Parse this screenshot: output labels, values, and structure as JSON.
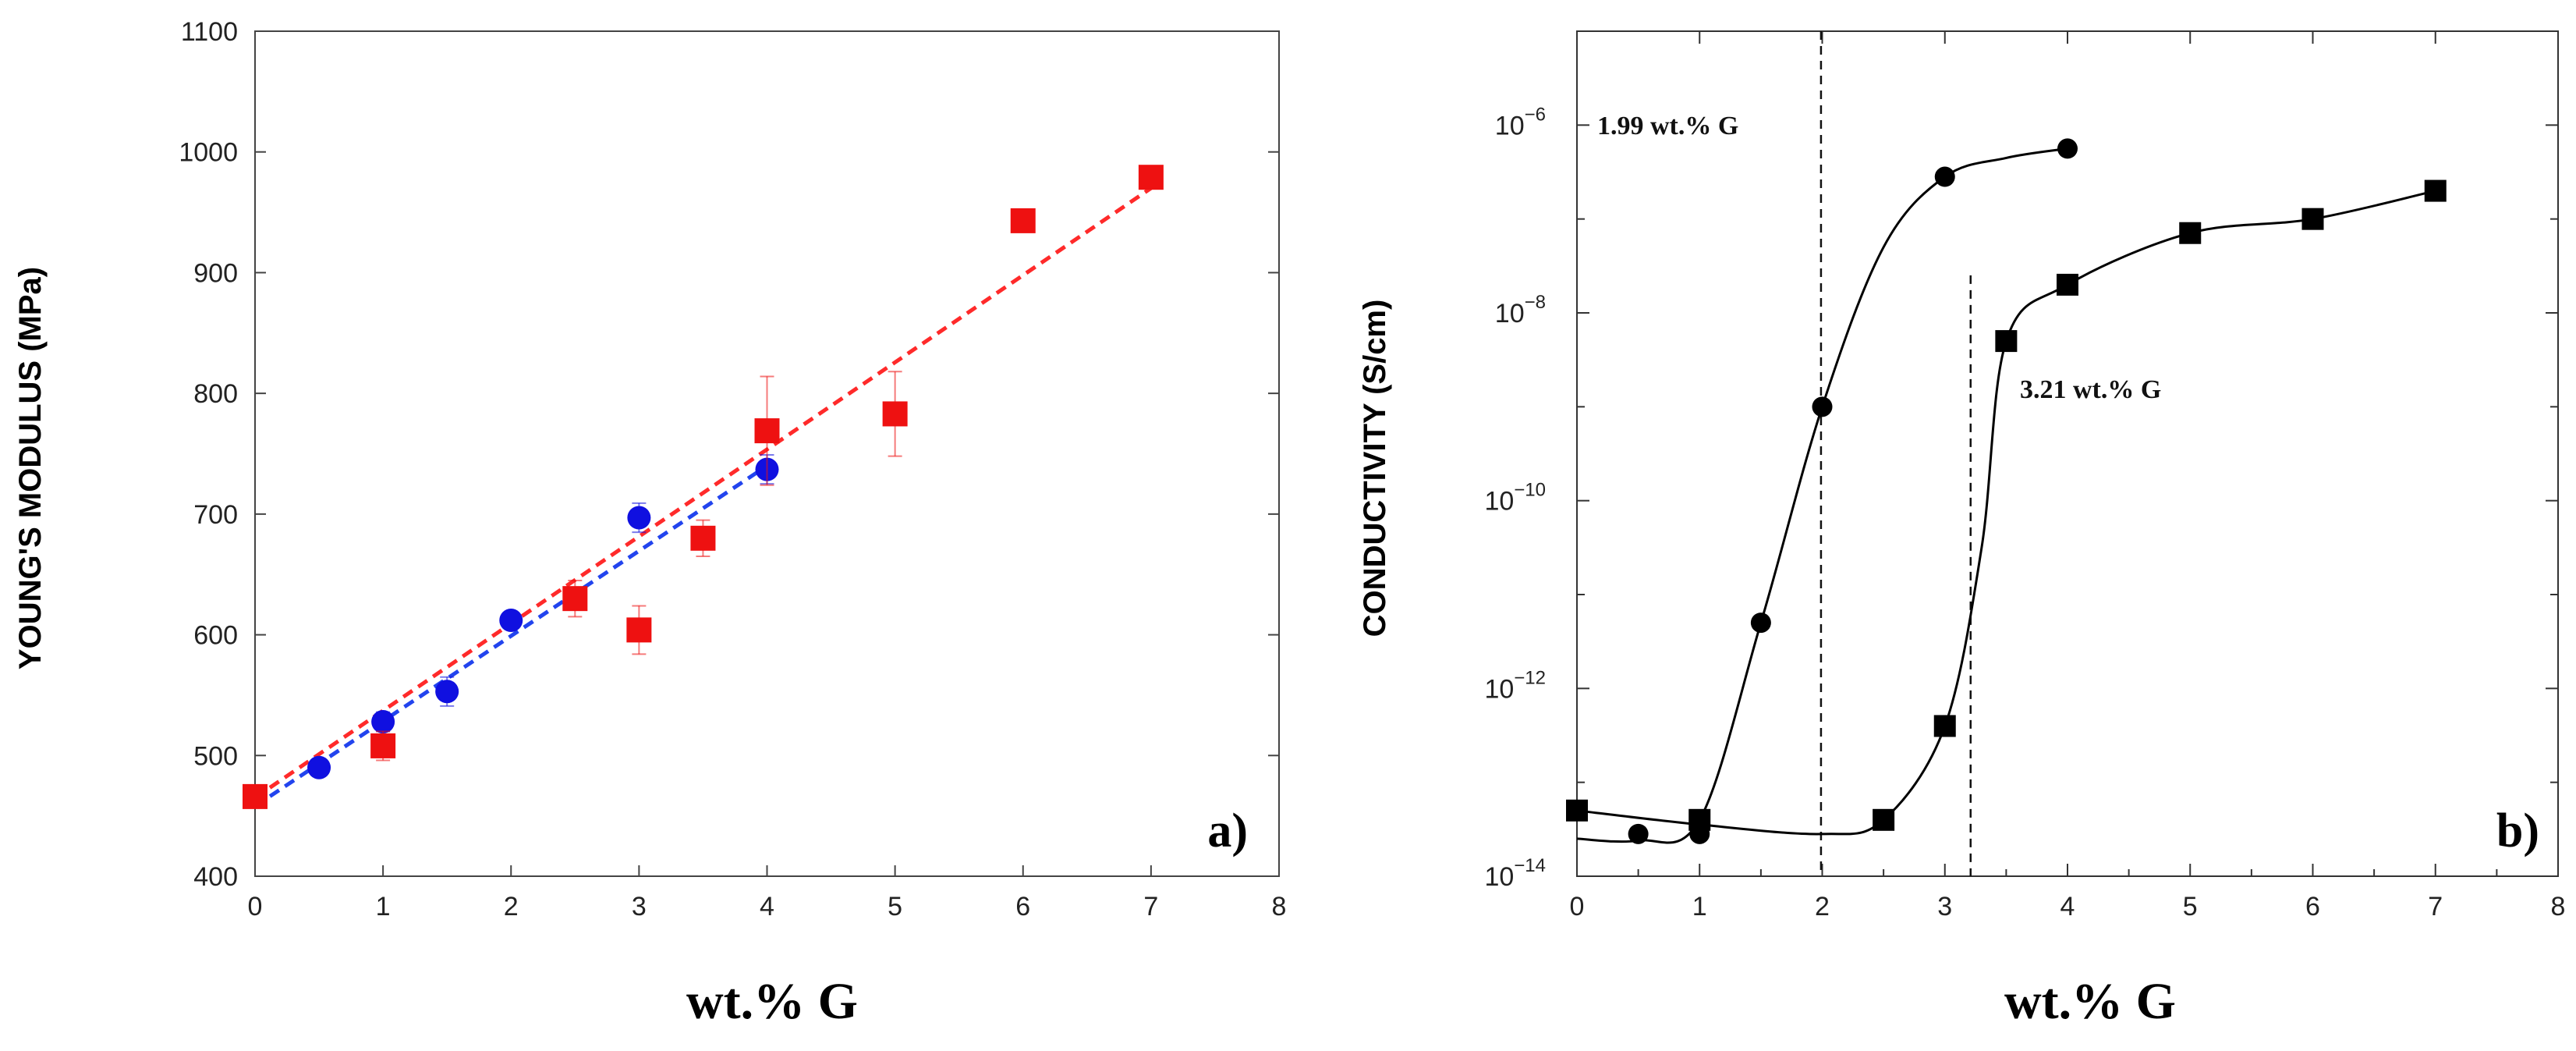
{
  "chart_data": [
    {
      "type": "scatter",
      "panel_label": "a)",
      "xlabel": "wt.% G",
      "ylabel": "YOUNG'S MODULUS (MPa)",
      "xlim": [
        0,
        8
      ],
      "ylim": [
        400,
        1100
      ],
      "x_ticks": [
        "0",
        "1",
        "2",
        "3",
        "4",
        "5",
        "6",
        "7",
        "8"
      ],
      "y_ticks": [
        "400",
        "500",
        "600",
        "700",
        "800",
        "900",
        "1000",
        "1100"
      ],
      "series": [
        {
          "name": "blue circles",
          "marker": "circle",
          "color": "#1010e0",
          "points": [
            {
              "x": 0.5,
              "y": 490,
              "err": 6
            },
            {
              "x": 1.0,
              "y": 528,
              "err": 8
            },
            {
              "x": 1.5,
              "y": 553,
              "err": 12
            },
            {
              "x": 2.0,
              "y": 612,
              "err": 6
            },
            {
              "x": 3.0,
              "y": 697,
              "err": 12
            },
            {
              "x": 4.0,
              "y": 737,
              "err": 12
            }
          ],
          "fit": {
            "x": [
              0,
              4
            ],
            "y": [
              458,
              740
            ],
            "style": "dashed",
            "color": "#2244ee"
          }
        },
        {
          "name": "red squares",
          "marker": "square",
          "color": "#ee1111",
          "points": [
            {
              "x": 0.0,
              "y": 466,
              "err": 0
            },
            {
              "x": 1.0,
              "y": 508,
              "err": 12
            },
            {
              "x": 2.5,
              "y": 630,
              "err": 15
            },
            {
              "x": 3.0,
              "y": 604,
              "err": 20
            },
            {
              "x": 3.5,
              "y": 680,
              "err": 15
            },
            {
              "x": 4.0,
              "y": 769,
              "err": 45
            },
            {
              "x": 5.0,
              "y": 783,
              "err": 35
            },
            {
              "x": 6.0,
              "y": 943,
              "err": 0
            },
            {
              "x": 7.0,
              "y": 979,
              "err": 5
            }
          ],
          "fit": {
            "x": [
              0,
              7
            ],
            "y": [
              465,
              970
            ],
            "style": "dashed",
            "color": "#ff2a2a"
          }
        }
      ]
    },
    {
      "type": "line",
      "panel_label": "b)",
      "xlabel": "wt.% G",
      "ylabel": "CONDUCTIVITY (S/cm)",
      "xlim": [
        0,
        8
      ],
      "ylim_log10": [
        -14,
        -5
      ],
      "x_ticks": [
        "0",
        "1",
        "2",
        "3",
        "4",
        "5",
        "6",
        "7",
        "8"
      ],
      "y_tick_exponents": [
        -6,
        -8,
        -10,
        -12,
        -14
      ],
      "y_tick_base": "10",
      "series": [
        {
          "name": "circles",
          "marker": "circle",
          "color": "#000000",
          "x": [
            0.5,
            1.0,
            1.5,
            2.0,
            3.0,
            4.0
          ],
          "log10_y": [
            -13.55,
            -13.55,
            -11.3,
            -9.0,
            -6.55,
            -6.25
          ],
          "curve_x": [
            0.0,
            0.5,
            1.0,
            1.5,
            2.0,
            2.5,
            3.0,
            3.5,
            4.0
          ],
          "curve_log10_y": [
            -13.6,
            -13.62,
            -13.4,
            -11.3,
            -9.0,
            -7.3,
            -6.55,
            -6.35,
            -6.25
          ]
        },
        {
          "name": "squares",
          "marker": "square",
          "color": "#000000",
          "x": [
            0.0,
            1.0,
            2.5,
            3.0,
            3.5,
            4.0,
            5.0,
            6.0,
            7.0
          ],
          "log10_y": [
            -13.3,
            -13.4,
            -13.4,
            -12.4,
            -8.3,
            -7.7,
            -7.15,
            -7.0,
            -6.7
          ],
          "curve_x": [
            0.0,
            1.0,
            2.0,
            2.5,
            3.0,
            3.3,
            3.5,
            4.0,
            5.0,
            6.0,
            7.0
          ],
          "curve_log10_y": [
            -13.3,
            -13.45,
            -13.55,
            -13.4,
            -12.4,
            -10.5,
            -8.3,
            -7.7,
            -7.15,
            -7.0,
            -6.7
          ]
        }
      ],
      "annotations": [
        {
          "text": "1.99 wt.% G",
          "x_threshold": 1.99
        },
        {
          "text": "3.21 wt.% G",
          "x_threshold": 3.21
        }
      ]
    }
  ]
}
